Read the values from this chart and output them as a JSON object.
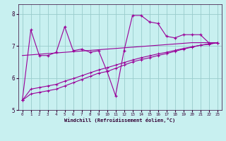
{
  "xlabel": "Windchill (Refroidissement éolien,°C)",
  "bg_color": "#c8f0f0",
  "line_color": "#990099",
  "grid_color": "#99cccc",
  "xlim": [
    -0.5,
    23.5
  ],
  "ylim": [
    5.0,
    8.3
  ],
  "yticks": [
    5,
    6,
    7,
    8
  ],
  "xticks": [
    0,
    1,
    2,
    3,
    4,
    5,
    6,
    7,
    8,
    9,
    10,
    11,
    12,
    13,
    14,
    15,
    16,
    17,
    18,
    19,
    20,
    21,
    22,
    23
  ],
  "series_jagged": [
    5.3,
    7.5,
    6.7,
    6.7,
    6.8,
    7.6,
    6.85,
    6.9,
    6.8,
    6.85,
    6.2,
    5.45,
    6.85,
    7.95,
    7.95,
    7.75,
    7.7,
    7.3,
    7.25,
    7.35,
    7.35,
    7.35,
    7.1,
    7.1
  ],
  "series_line1": [
    5.3,
    5.5,
    5.55,
    5.6,
    5.65,
    5.75,
    5.85,
    5.95,
    6.05,
    6.15,
    6.2,
    6.3,
    6.4,
    6.5,
    6.57,
    6.63,
    6.7,
    6.76,
    6.83,
    6.9,
    6.96,
    7.02,
    7.05,
    7.1
  ],
  "series_line2": [
    5.3,
    5.65,
    5.7,
    5.75,
    5.8,
    5.9,
    5.98,
    6.07,
    6.16,
    6.25,
    6.32,
    6.4,
    6.48,
    6.56,
    6.63,
    6.69,
    6.75,
    6.8,
    6.86,
    6.92,
    6.97,
    7.02,
    7.06,
    7.1
  ],
  "series_line3": [
    6.7,
    6.72,
    6.74,
    6.76,
    6.78,
    6.8,
    6.82,
    6.84,
    6.86,
    6.88,
    6.9,
    6.92,
    6.94,
    6.96,
    6.98,
    7.0,
    7.02,
    7.04,
    7.06,
    7.08,
    7.1,
    7.1,
    7.1,
    7.1
  ]
}
